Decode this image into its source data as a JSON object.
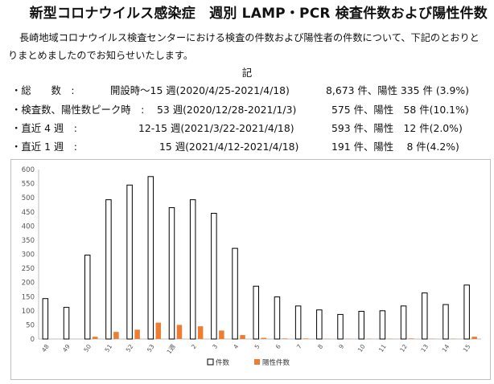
{
  "title": "新型コロナウイルス感染症　週別 LAMP・PCR 検査件数および陽性件数",
  "intro": "長崎地域コロナウイルス検査センターにおける検査の件数および陽性者の件数について、下記のとおりとりまとめましたのでお知らせいたします。",
  "ki": "記",
  "summary": [
    {
      "label": "・総　　数　:",
      "period": "開設時～15 週(2020/4/25-2021/4/18)",
      "count": "8,673 件、陽性 335 件 (3.9%)"
    },
    {
      "label": "・検査数、陽性数ピーク時　:",
      "period": "53 週(2020/12/28-2021/1/3)",
      "count": "575 件、陽性　58 件(10.1%)"
    },
    {
      "label": "・直近 4 週　:",
      "period": "12-15 週(2021/3/22-2021/4/18)",
      "count": "593 件、陽性　12 件(2.0%)"
    },
    {
      "label": "・直近 1 週　:",
      "period": "15 週(2021/4/12-2021/4/18)",
      "count": "191 件、陽性　 8 件(4.2%)"
    }
  ],
  "chart_data": {
    "type": "bar",
    "categories": [
      "48",
      "49",
      "50",
      "51",
      "52",
      "53",
      "1週",
      "2",
      "3",
      "4",
      "5",
      "6",
      "7",
      "8",
      "9",
      "10",
      "11",
      "12",
      "13",
      "14",
      "15"
    ],
    "series": [
      {
        "name": "件数",
        "color": "#ffffff",
        "values": [
          143,
          112,
          297,
          493,
          545,
          575,
          465,
          493,
          445,
          321,
          187,
          149,
          117,
          103,
          87,
          98,
          100,
          117,
          163,
          122,
          191
        ]
      },
      {
        "name": "陽性件数",
        "color": "#ed7d31",
        "values": [
          0,
          0,
          8,
          25,
          33,
          58,
          50,
          45,
          30,
          14,
          4,
          2,
          2,
          1,
          1,
          1,
          1,
          2,
          1,
          1,
          8
        ]
      }
    ],
    "ylim": [
      0,
      600
    ],
    "yticks": [
      "0",
      "50",
      "100",
      "150",
      "200",
      "250",
      "300",
      "350",
      "400",
      "450",
      "500",
      "550",
      "600"
    ],
    "grid": false,
    "legend": "bottom"
  }
}
